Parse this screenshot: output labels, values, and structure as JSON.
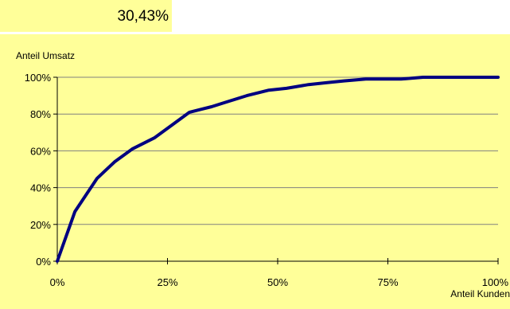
{
  "summary": {
    "value": "30,43%"
  },
  "chart_data": {
    "type": "line",
    "title": "",
    "ylabel": "Anteil Umsatz",
    "xlabel": "Anteil Kunden",
    "xlim": [
      0,
      100
    ],
    "ylim": [
      0,
      100
    ],
    "x_ticks": [
      "0%",
      "25%",
      "50%",
      "75%",
      "100%"
    ],
    "y_ticks": [
      "0%",
      "20%",
      "40%",
      "60%",
      "80%",
      "100%"
    ],
    "grid": "horizontal",
    "colors": {
      "line": "#000080",
      "grid": "#808080",
      "background": "#ffff99"
    },
    "series": [
      {
        "x": [
          0,
          4,
          9,
          13,
          17,
          22,
          26,
          30,
          35,
          39,
          43,
          48,
          52,
          57,
          61,
          65,
          70,
          74,
          78,
          83,
          87,
          91,
          96,
          100
        ],
        "y": [
          0,
          27,
          45,
          54,
          61,
          67,
          74,
          81,
          84,
          87,
          90,
          93,
          94,
          96,
          97,
          98,
          99,
          99,
          99,
          100,
          100,
          100,
          100,
          100
        ]
      }
    ]
  }
}
